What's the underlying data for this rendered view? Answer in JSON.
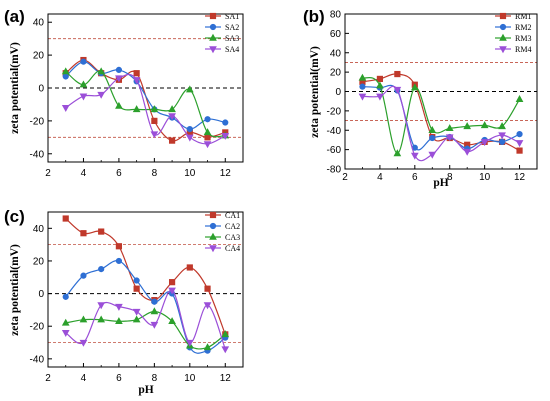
{
  "chart_data": [
    {
      "panel": "(a)",
      "type": "line",
      "title": "",
      "xlabel": "",
      "ylabel": "zeta potential(mV)",
      "xlim": [
        2,
        13
      ],
      "ylim": [
        -45,
        45
      ],
      "xticks": [
        "2",
        "4",
        "6",
        "8",
        "10",
        "12"
      ],
      "yticks": [
        "40",
        "20",
        "0",
        "-20",
        "-40"
      ],
      "grid": false,
      "legend_position": "top-right",
      "reference_lines": [
        {
          "y": 0,
          "color": "#000000",
          "style": "dashed"
        },
        {
          "y": 30,
          "color": "#c05040",
          "style": "dashed"
        },
        {
          "y": -30,
          "color": "#c05040",
          "style": "dashed"
        }
      ],
      "series": [
        {
          "name": "SA1",
          "color": "#c0392b",
          "marker": "square",
          "x": [
            3,
            4,
            5,
            6,
            7,
            8,
            9,
            10,
            11,
            12
          ],
          "y": [
            9,
            17,
            9,
            5,
            9,
            -20,
            -32,
            -27,
            -30,
            -27
          ]
        },
        {
          "name": "SA2",
          "color": "#2e6fd4",
          "marker": "circle",
          "x": [
            3,
            4,
            5,
            6,
            7,
            8,
            9,
            10,
            11,
            12
          ],
          "y": [
            7,
            16,
            9,
            11,
            4,
            -13,
            -18,
            -25,
            -19,
            -21
          ]
        },
        {
          "name": "SA3",
          "color": "#2ca02c",
          "marker": "triangle-up",
          "x": [
            3,
            4,
            5,
            6,
            7,
            8,
            9,
            10,
            11,
            12
          ],
          "y": [
            10,
            2,
            10,
            -11,
            -13,
            -13,
            -13,
            -1,
            -27,
            -29
          ]
        },
        {
          "name": "SA4",
          "color": "#9b4fd8",
          "marker": "triangle-down",
          "x": [
            3,
            4,
            5,
            6,
            7,
            8,
            9,
            10,
            11,
            12
          ],
          "y": [
            -12,
            -5,
            -4,
            6,
            5,
            -28,
            -17,
            -30,
            -34,
            -29
          ]
        }
      ]
    },
    {
      "panel": "(b)",
      "type": "line",
      "title": "",
      "xlabel": "pH",
      "ylabel": "zeta potential(mV)",
      "xlim": [
        2,
        13
      ],
      "ylim": [
        -80,
        80
      ],
      "xticks": [
        "2",
        "4",
        "6",
        "8",
        "10",
        "12"
      ],
      "yticks": [
        "80",
        "60",
        "40",
        "20",
        "0",
        "-20",
        "-40",
        "-60",
        "-80"
      ],
      "grid": false,
      "legend_position": "top-right",
      "reference_lines": [
        {
          "y": 0,
          "color": "#000000",
          "style": "dashed"
        },
        {
          "y": 30,
          "color": "#c05040",
          "style": "dashed"
        },
        {
          "y": -30,
          "color": "#c05040",
          "style": "dashed"
        }
      ],
      "series": [
        {
          "name": "RM1",
          "color": "#c0392b",
          "marker": "square",
          "x": [
            3,
            4,
            5,
            6,
            7,
            8,
            9,
            10,
            11,
            12
          ],
          "y": [
            10,
            13,
            18,
            7,
            -47,
            -48,
            -55,
            -52,
            -52,
            -61
          ]
        },
        {
          "name": "RM2",
          "color": "#2e6fd4",
          "marker": "circle",
          "x": [
            3,
            4,
            5,
            6,
            7,
            8,
            9,
            10,
            11,
            12
          ],
          "y": [
            5,
            4,
            1,
            -58,
            -48,
            -47,
            -59,
            -50,
            -52,
            -44
          ]
        },
        {
          "name": "RM3",
          "color": "#2ca02c",
          "marker": "triangle-up",
          "x": [
            3,
            4,
            5,
            6,
            7,
            8,
            9,
            10,
            11,
            12
          ],
          "y": [
            14,
            6,
            -64,
            4,
            -40,
            -38,
            -36,
            -35,
            -36,
            -8
          ]
        },
        {
          "name": "RM4",
          "color": "#9b4fd8",
          "marker": "triangle-down",
          "x": [
            3,
            4,
            5,
            6,
            7,
            8,
            9,
            10,
            11,
            12
          ],
          "y": [
            -5,
            -5,
            2,
            -66,
            -65,
            -47,
            -62,
            -52,
            -45,
            -53
          ]
        }
      ]
    },
    {
      "panel": "(c)",
      "type": "line",
      "title": "",
      "xlabel": "pH",
      "ylabel": "zeta potential(mV)",
      "xlim": [
        2,
        13
      ],
      "ylim": [
        -45,
        50
      ],
      "xticks": [
        "2",
        "4",
        "6",
        "8",
        "10",
        "12"
      ],
      "yticks": [
        "40",
        "20",
        "0",
        "-20",
        "-40"
      ],
      "grid": false,
      "legend_position": "top-right",
      "reference_lines": [
        {
          "y": 0,
          "color": "#000000",
          "style": "dashed"
        },
        {
          "y": 30,
          "color": "#c05040",
          "style": "dashed"
        },
        {
          "y": -30,
          "color": "#c05040",
          "style": "dashed"
        }
      ],
      "series": [
        {
          "name": "CA1",
          "color": "#c0392b",
          "marker": "square",
          "x": [
            3,
            4,
            5,
            6,
            7,
            8,
            9,
            10,
            11,
            12
          ],
          "y": [
            46,
            37,
            38,
            29,
            3,
            -4,
            7,
            16,
            3,
            -25
          ]
        },
        {
          "name": "CA2",
          "color": "#2e6fd4",
          "marker": "circle",
          "x": [
            3,
            4,
            5,
            6,
            7,
            8,
            9,
            10,
            11,
            12
          ],
          "y": [
            -2,
            11,
            15,
            20,
            8,
            -5,
            0,
            -33,
            -35,
            -27
          ]
        },
        {
          "name": "CA3",
          "color": "#2ca02c",
          "marker": "triangle-up",
          "x": [
            3,
            4,
            5,
            6,
            7,
            8,
            9,
            10,
            11,
            12
          ],
          "y": [
            -18,
            -16,
            -16,
            -17,
            -16,
            -11,
            -17,
            -32,
            -33,
            -25
          ]
        },
        {
          "name": "CA4",
          "color": "#9b4fd8",
          "marker": "triangle-down",
          "x": [
            3,
            4,
            5,
            6,
            7,
            8,
            9,
            10,
            11,
            12
          ],
          "y": [
            -24,
            -30,
            -7,
            -8,
            -11,
            -19,
            2,
            -30,
            -7,
            -34
          ]
        }
      ]
    }
  ]
}
